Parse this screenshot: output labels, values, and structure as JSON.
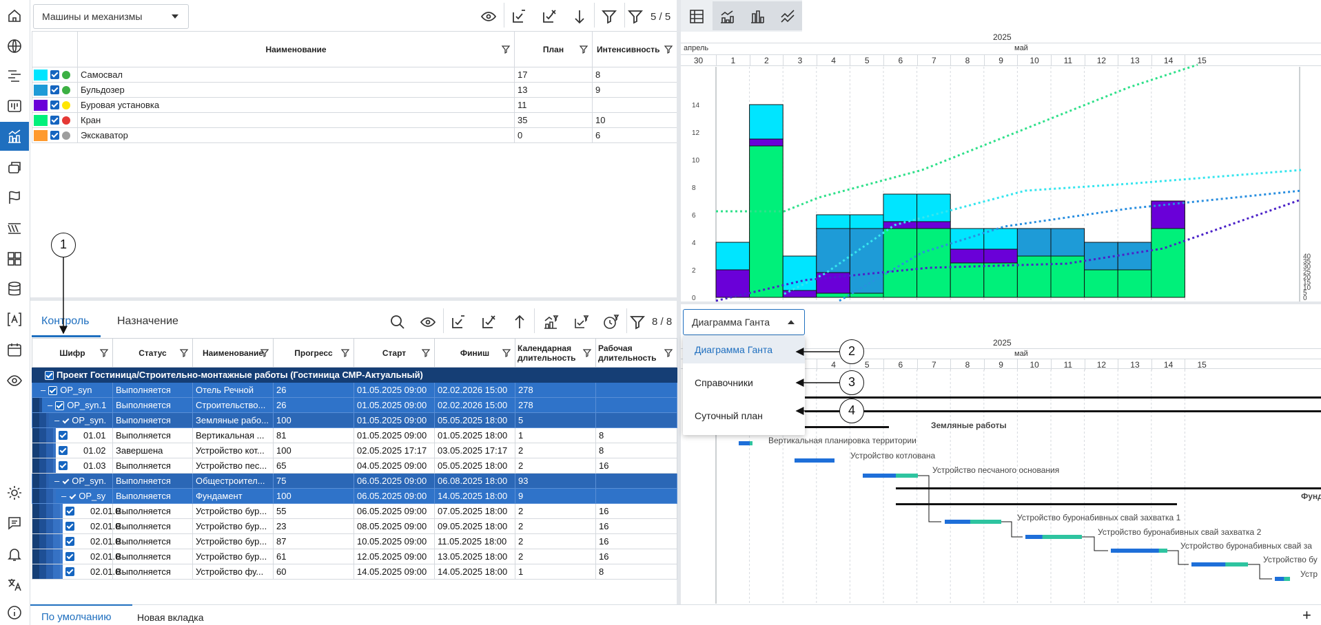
{
  "sidebar": {
    "icons": [
      "home-icon",
      "globe-icon",
      "outline-icon",
      "board-icon",
      "chart-icon",
      "layers-icon",
      "flag-icon",
      "lines-icon",
      "grid-icon",
      "database-icon",
      "text-icon",
      "calendar-icon",
      "eye-icon",
      "sun-icon",
      "chat-icon",
      "bell-icon",
      "translate-icon",
      "info-icon"
    ],
    "active": "chart-icon"
  },
  "resource_panel": {
    "dropdown_value": "Машины и механизмы",
    "filter_count": "5 / 5",
    "columns": [
      "Наименование",
      "План",
      "Интенсивность"
    ],
    "rows": [
      {
        "color": "#00e5ff",
        "status": "#3cb043",
        "name": "Самосвал",
        "plan": "17",
        "intensity": "8"
      },
      {
        "color": "#1e9bd7",
        "status": "#3cb043",
        "name": "Бульдозер",
        "plan": "13",
        "intensity": "9"
      },
      {
        "color": "#6a00d8",
        "status": "#ffe600",
        "name": "Буровая установка",
        "plan": "11",
        "intensity": ""
      },
      {
        "color": "#00f07a",
        "status": "#e53935",
        "name": "Кран",
        "plan": "35",
        "intensity": "10"
      },
      {
        "color": "#ff9a2e",
        "status": "#9e9e9e",
        "name": "Экскаватор",
        "plan": "0",
        "intensity": "6"
      }
    ]
  },
  "timeline": {
    "year": "2025",
    "month_prev": "апрель",
    "month": "май",
    "days": [
      "30",
      "1",
      "2",
      "3",
      "4",
      "5",
      "6",
      "7",
      "8",
      "9",
      "10",
      "11",
      "12",
      "13",
      "14",
      "15"
    ]
  },
  "chart_data": {
    "type": "bar",
    "categories": [
      "30",
      "1",
      "2",
      "3",
      "4",
      "5",
      "6",
      "7",
      "8",
      "9",
      "10",
      "11",
      "12",
      "13",
      "14"
    ],
    "series": [
      {
        "name": "Кран",
        "color": "#00f07a",
        "values": [
          0,
          0,
          11,
          0,
          0.3,
          0.3,
          5,
          5,
          2.5,
          2.5,
          3,
          3,
          2,
          2,
          5
        ]
      },
      {
        "name": "Буровая установка",
        "color": "#6a00d8",
        "values": [
          0,
          2,
          0.5,
          0.5,
          1.5,
          0,
          0.5,
          0.5,
          1,
          1,
          0,
          0,
          0,
          0,
          2
        ]
      },
      {
        "name": "Бульдозер",
        "color": "#1e9bd7",
        "values": [
          0,
          0,
          0,
          0,
          3.2,
          4.7,
          0,
          0,
          0,
          0,
          2,
          2,
          2,
          2,
          0
        ]
      },
      {
        "name": "Самосвал",
        "color": "#00e5ff",
        "values": [
          0,
          2,
          2.5,
          2.5,
          1,
          1,
          2,
          2,
          1.5,
          1.5,
          0,
          0,
          0,
          0,
          0
        ]
      }
    ],
    "left_ticks": [
      "0",
      "2",
      "4",
      "6",
      "8",
      "10",
      "12",
      "14"
    ],
    "right_ticks": [
      "0",
      "5",
      "10",
      "15",
      "20",
      "25",
      "30",
      "35",
      "40"
    ],
    "ylim": [
      0,
      16
    ]
  },
  "task_panel": {
    "tabs": [
      "Контроль",
      "Назначение"
    ],
    "active_tab": "Контроль",
    "filter_count": "8 / 8",
    "columns": [
      "Шифр",
      "Статус",
      "Наименование",
      "Прогресс",
      "Старт",
      "Финиш",
      "Календарная длительность",
      "Рабочая длительность"
    ],
    "project_row": "Проект Гостиница/Строительно-монтажные работы (Гостиница СМР-Актуальный)",
    "rows": [
      {
        "level": 0,
        "kind": "group",
        "code": "OP_syn",
        "status": "Выполняется",
        "name": "Отель Речной",
        "progress": "26",
        "start": "01.05.2025 09:00",
        "finish": "02.02.2026 15:00",
        "cal": "278",
        "work": ""
      },
      {
        "level": 1,
        "kind": "group",
        "code": "OP_syn.1",
        "status": "Выполняется",
        "name": "Строительство...",
        "progress": "26",
        "start": "01.05.2025 09:00",
        "finish": "02.02.2026 15:00",
        "cal": "278",
        "work": ""
      },
      {
        "level": 2,
        "kind": "group2",
        "code": "OP_syn.",
        "status": "Выполняется",
        "name": "Земляные рабо...",
        "progress": "100",
        "start": "01.05.2025 09:00",
        "finish": "05.05.2025 18:00",
        "cal": "5",
        "work": ""
      },
      {
        "level": 3,
        "kind": "leaf",
        "code": "01.01",
        "status": "Выполняется",
        "name": "Вертикальная ...",
        "progress": "81",
        "start": "01.05.2025 09:00",
        "finish": "01.05.2025 18:00",
        "cal": "1",
        "work": "8"
      },
      {
        "level": 3,
        "kind": "leaf",
        "code": "01.02",
        "status": "Завершена",
        "name": "Устройство кот...",
        "progress": "100",
        "start": "02.05.2025 17:17",
        "finish": "03.05.2025 17:17",
        "cal": "2",
        "work": "8"
      },
      {
        "level": 3,
        "kind": "leaf",
        "code": "01.03",
        "status": "Выполняется",
        "name": "Устройство пес...",
        "progress": "65",
        "start": "04.05.2025 09:00",
        "finish": "05.05.2025 18:00",
        "cal": "2",
        "work": "16"
      },
      {
        "level": 2,
        "kind": "group2",
        "code": "OP_syn.",
        "status": "Выполняется",
        "name": "Общестроител...",
        "progress": "75",
        "start": "06.05.2025 09:00",
        "finish": "06.08.2025 18:00",
        "cal": "93",
        "work": ""
      },
      {
        "level": 3,
        "kind": "group",
        "code": "OP_sy",
        "status": "Выполняется",
        "name": "Фундамент",
        "progress": "100",
        "start": "06.05.2025 09:00",
        "finish": "14.05.2025 18:00",
        "cal": "9",
        "work": ""
      },
      {
        "level": 4,
        "kind": "leaf",
        "code": "02.01.0",
        "status": "Выполняется",
        "name": "Устройство бур...",
        "progress": "55",
        "start": "06.05.2025 09:00",
        "finish": "07.05.2025 18:00",
        "cal": "2",
        "work": "16"
      },
      {
        "level": 4,
        "kind": "leaf",
        "code": "02.01.0",
        "status": "Выполняется",
        "name": "Устройство бур...",
        "progress": "23",
        "start": "08.05.2025 09:00",
        "finish": "09.05.2025 18:00",
        "cal": "2",
        "work": "16"
      },
      {
        "level": 4,
        "kind": "leaf",
        "code": "02.01.0",
        "status": "Выполняется",
        "name": "Устройство бур...",
        "progress": "87",
        "start": "10.05.2025 09:00",
        "finish": "11.05.2025 18:00",
        "cal": "2",
        "work": "16"
      },
      {
        "level": 4,
        "kind": "leaf",
        "code": "02.01.0",
        "status": "Выполняется",
        "name": "Устройство бур...",
        "progress": "61",
        "start": "12.05.2025 09:00",
        "finish": "13.05.2025 18:00",
        "cal": "2",
        "work": "16"
      },
      {
        "level": 4,
        "kind": "leaf",
        "code": "02.01.0",
        "status": "Выполняется",
        "name": "Устройство фу...",
        "progress": "60",
        "start": "14.05.2025 09:00",
        "finish": "14.05.2025 18:00",
        "cal": "1",
        "work": "8"
      }
    ]
  },
  "view_selector": {
    "value": "Диаграмма Ганта",
    "options": [
      "Диаграмма Ганта",
      "Справочники",
      "Суточный план"
    ]
  },
  "gantt": {
    "labels": [
      "Земляные работы",
      "Вертикальная планировка территории",
      "Устройство котлована",
      "Устройство песчаного основания",
      "Фунд",
      "Устройство буронабивных свай захватка 1",
      "Устройство буронабивных свай захватка 2",
      "Устройство буронабивных свай за",
      "Устройство бу",
      "Устр"
    ]
  },
  "callouts": [
    "1",
    "2",
    "3",
    "4"
  ],
  "bottom_tabs": {
    "active": "По умолчанию",
    "other": "Новая вкладка",
    "add": "+"
  }
}
